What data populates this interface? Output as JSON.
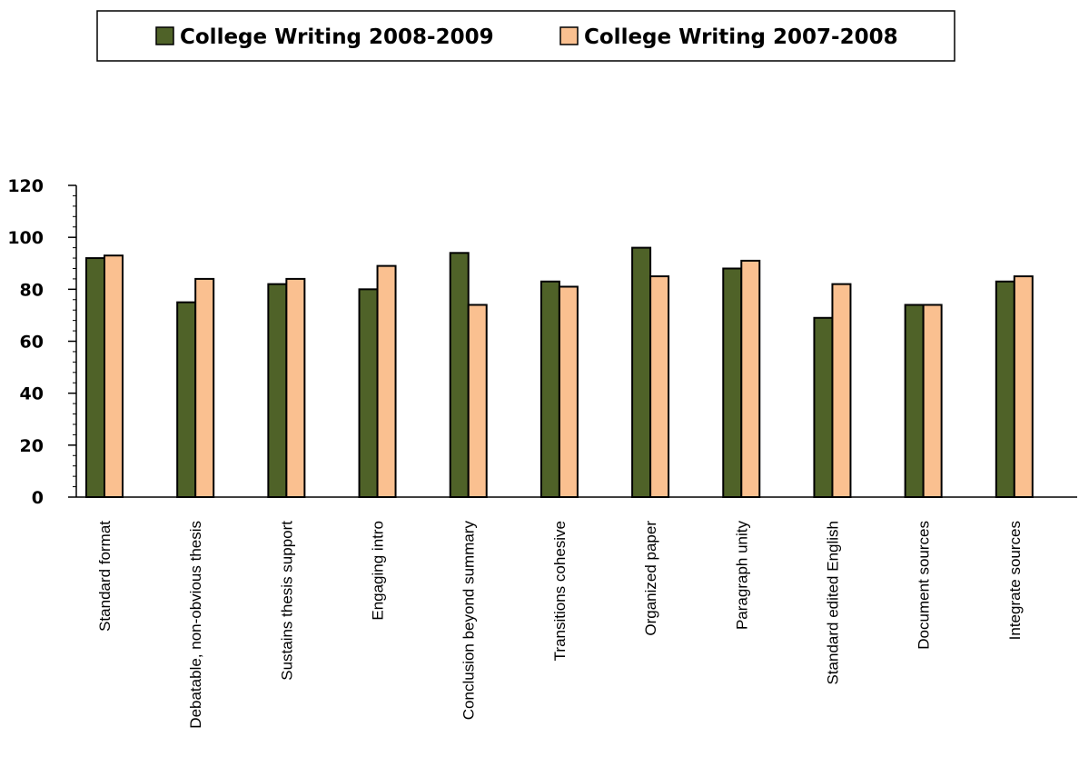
{
  "chart_data": {
    "type": "bar",
    "categories": [
      "Standard format",
      "Debatable, non-obvious thesis",
      "Sustains thesis support",
      "Engaging intro",
      "Conclusion beyond summary",
      "Transitions cohesive",
      "Organized paper",
      "Paragraph unity",
      "Standard edited English",
      "Document sources",
      "Integrate sources"
    ],
    "series": [
      {
        "name": "College Writing 2008-2009",
        "color": "#4f6228",
        "values": [
          92,
          75,
          82,
          80,
          94,
          83,
          96,
          88,
          69,
          74,
          83
        ]
      },
      {
        "name": "College Writing 2007-2008",
        "color": "#fac090",
        "values": [
          93,
          84,
          84,
          89,
          74,
          81,
          85,
          91,
          82,
          74,
          85
        ]
      }
    ],
    "ylim": [
      0,
      120
    ],
    "yticks": [
      0,
      20,
      40,
      60,
      80,
      100,
      120
    ],
    "grid": false,
    "legend_position": "top-center"
  }
}
